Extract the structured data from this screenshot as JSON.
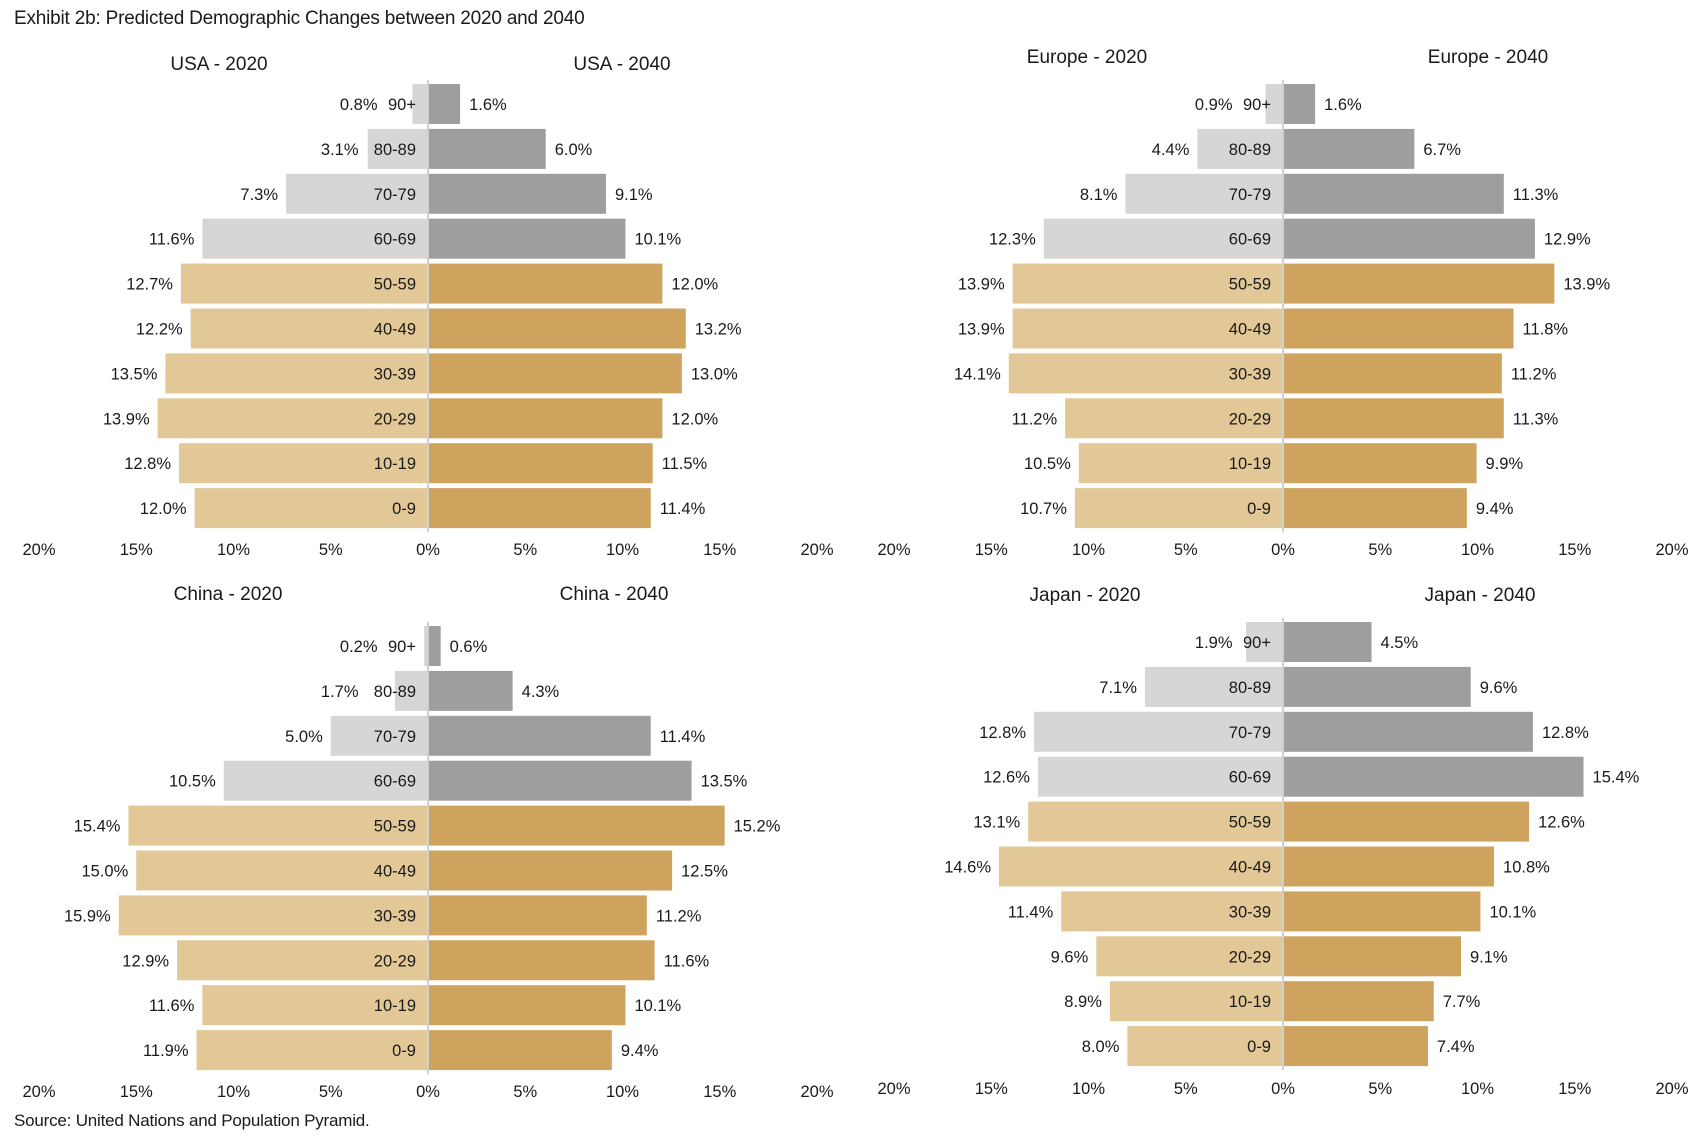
{
  "header": {
    "title": "Exhibit 2b: Predicted Demographic Changes between 2020 and 2040"
  },
  "footer": {
    "source": "Source: United Nations and Population Pyramid."
  },
  "colors": {
    "older_2020": "#d6d6d6",
    "older_2040": "#9e9e9e",
    "younger_2020": "#e2c897",
    "younger_2040": "#cda35e",
    "axis_line": "#d0d0d0"
  },
  "chart_data": [
    {
      "type": "bar",
      "subtype": "population-pyramid",
      "region": "USA",
      "left_title": "USA - 2020",
      "right_title": "USA - 2040",
      "categories": [
        "90+",
        "80-89",
        "70-79",
        "60-69",
        "50-59",
        "40-49",
        "30-39",
        "20-29",
        "10-19",
        "0-9"
      ],
      "series": [
        {
          "name": "2020",
          "side": "left",
          "values": [
            0.8,
            3.1,
            7.3,
            11.6,
            12.7,
            12.2,
            13.5,
            13.9,
            12.8,
            12.0
          ],
          "labels": [
            "0.8%",
            "3.1%",
            "7.3%",
            "11.6%",
            "12.7%",
            "12.2%",
            "13.5%",
            "13.9%",
            "12.8%",
            "12.0%"
          ]
        },
        {
          "name": "2040",
          "side": "right",
          "values": [
            1.6,
            6.0,
            9.1,
            10.1,
            12.0,
            13.2,
            13.0,
            12.0,
            11.5,
            11.4
          ],
          "labels": [
            "1.6%",
            "6.0%",
            "9.1%",
            "10.1%",
            "12.0%",
            "13.2%",
            "13.0%",
            "12.0%",
            "11.5%",
            "11.4%"
          ]
        }
      ],
      "xticks": [
        "20%",
        "15%",
        "10%",
        "5%",
        "0%",
        "5%",
        "10%",
        "15%",
        "20%"
      ],
      "xlim": [
        -20,
        20
      ],
      "unit": "% of population",
      "grid": false
    },
    {
      "type": "bar",
      "subtype": "population-pyramid",
      "region": "Europe",
      "left_title": "Europe - 2020",
      "right_title": "Europe - 2040",
      "categories": [
        "90+",
        "80-89",
        "70-79",
        "60-69",
        "50-59",
        "40-49",
        "30-39",
        "20-29",
        "10-19",
        "0-9"
      ],
      "series": [
        {
          "name": "2020",
          "side": "left",
          "values": [
            0.9,
            4.4,
            8.1,
            12.3,
            13.9,
            13.9,
            14.1,
            11.2,
            10.5,
            10.7
          ],
          "labels": [
            "0.9%",
            "4.4%",
            "8.1%",
            "12.3%",
            "13.9%",
            "13.9%",
            "14.1%",
            "11.2%",
            "10.5%",
            "10.7%"
          ]
        },
        {
          "name": "2040",
          "side": "right",
          "values": [
            1.6,
            6.7,
            11.3,
            12.9,
            13.9,
            11.8,
            11.2,
            11.3,
            9.9,
            9.4
          ],
          "labels": [
            "1.6%",
            "6.7%",
            "11.3%",
            "12.9%",
            "13.9%",
            "11.8%",
            "11.2%",
            "11.3%",
            "9.9%",
            "9.4%"
          ]
        }
      ],
      "xticks": [
        "20%",
        "15%",
        "10%",
        "5%",
        "0%",
        "5%",
        "10%",
        "15%",
        "20%"
      ],
      "xlim": [
        -20,
        20
      ],
      "unit": "% of population",
      "grid": false
    },
    {
      "type": "bar",
      "subtype": "population-pyramid",
      "region": "China",
      "left_title": "China - 2020",
      "right_title": "China - 2040",
      "categories": [
        "90+",
        "80-89",
        "70-79",
        "60-69",
        "50-59",
        "40-49",
        "30-39",
        "20-29",
        "10-19",
        "0-9"
      ],
      "series": [
        {
          "name": "2020",
          "side": "left",
          "values": [
            0.2,
            1.7,
            5.0,
            10.5,
            15.4,
            15.0,
            15.9,
            12.9,
            11.6,
            11.9
          ],
          "labels": [
            "0.2%",
            "1.7%",
            "5.0%",
            "10.5%",
            "15.4%",
            "15.0%",
            "15.9%",
            "12.9%",
            "11.6%",
            "11.9%"
          ]
        },
        {
          "name": "2040",
          "side": "right",
          "values": [
            0.6,
            4.3,
            11.4,
            13.5,
            15.2,
            12.5,
            11.2,
            11.6,
            10.1,
            9.4
          ],
          "labels": [
            "0.6%",
            "4.3%",
            "11.4%",
            "13.5%",
            "15.2%",
            "12.5%",
            "11.2%",
            "11.6%",
            "10.1%",
            "9.4%"
          ]
        }
      ],
      "xticks": [
        "20%",
        "15%",
        "10%",
        "5%",
        "0%",
        "5%",
        "10%",
        "15%",
        "20%"
      ],
      "xlim": [
        -20,
        20
      ],
      "unit": "% of population",
      "grid": false
    },
    {
      "type": "bar",
      "subtype": "population-pyramid",
      "region": "Japan",
      "left_title": "Japan - 2020",
      "right_title": "Japan - 2040",
      "categories": [
        "90+",
        "80-89",
        "70-79",
        "60-69",
        "50-59",
        "40-49",
        "30-39",
        "20-29",
        "10-19",
        "0-9"
      ],
      "series": [
        {
          "name": "2020",
          "side": "left",
          "values": [
            1.9,
            7.1,
            12.8,
            12.6,
            13.1,
            14.6,
            11.4,
            9.6,
            8.9,
            8.0
          ],
          "labels": [
            "1.9%",
            "7.1%",
            "12.8%",
            "12.6%",
            "13.1%",
            "14.6%",
            "11.4%",
            "9.6%",
            "8.9%",
            "8.0%"
          ]
        },
        {
          "name": "2040",
          "side": "right",
          "values": [
            4.5,
            9.6,
            12.8,
            15.4,
            12.6,
            10.8,
            10.1,
            9.1,
            7.7,
            7.4
          ],
          "labels": [
            "4.5%",
            "9.6%",
            "12.8%",
            "15.4%",
            "12.6%",
            "10.8%",
            "10.1%",
            "9.1%",
            "7.7%",
            "7.4%"
          ]
        }
      ],
      "xticks": [
        "20%",
        "15%",
        "10%",
        "5%",
        "0%",
        "5%",
        "10%",
        "15%",
        "20%"
      ],
      "xlim": [
        -20,
        20
      ],
      "unit": "% of population",
      "grid": false
    }
  ]
}
